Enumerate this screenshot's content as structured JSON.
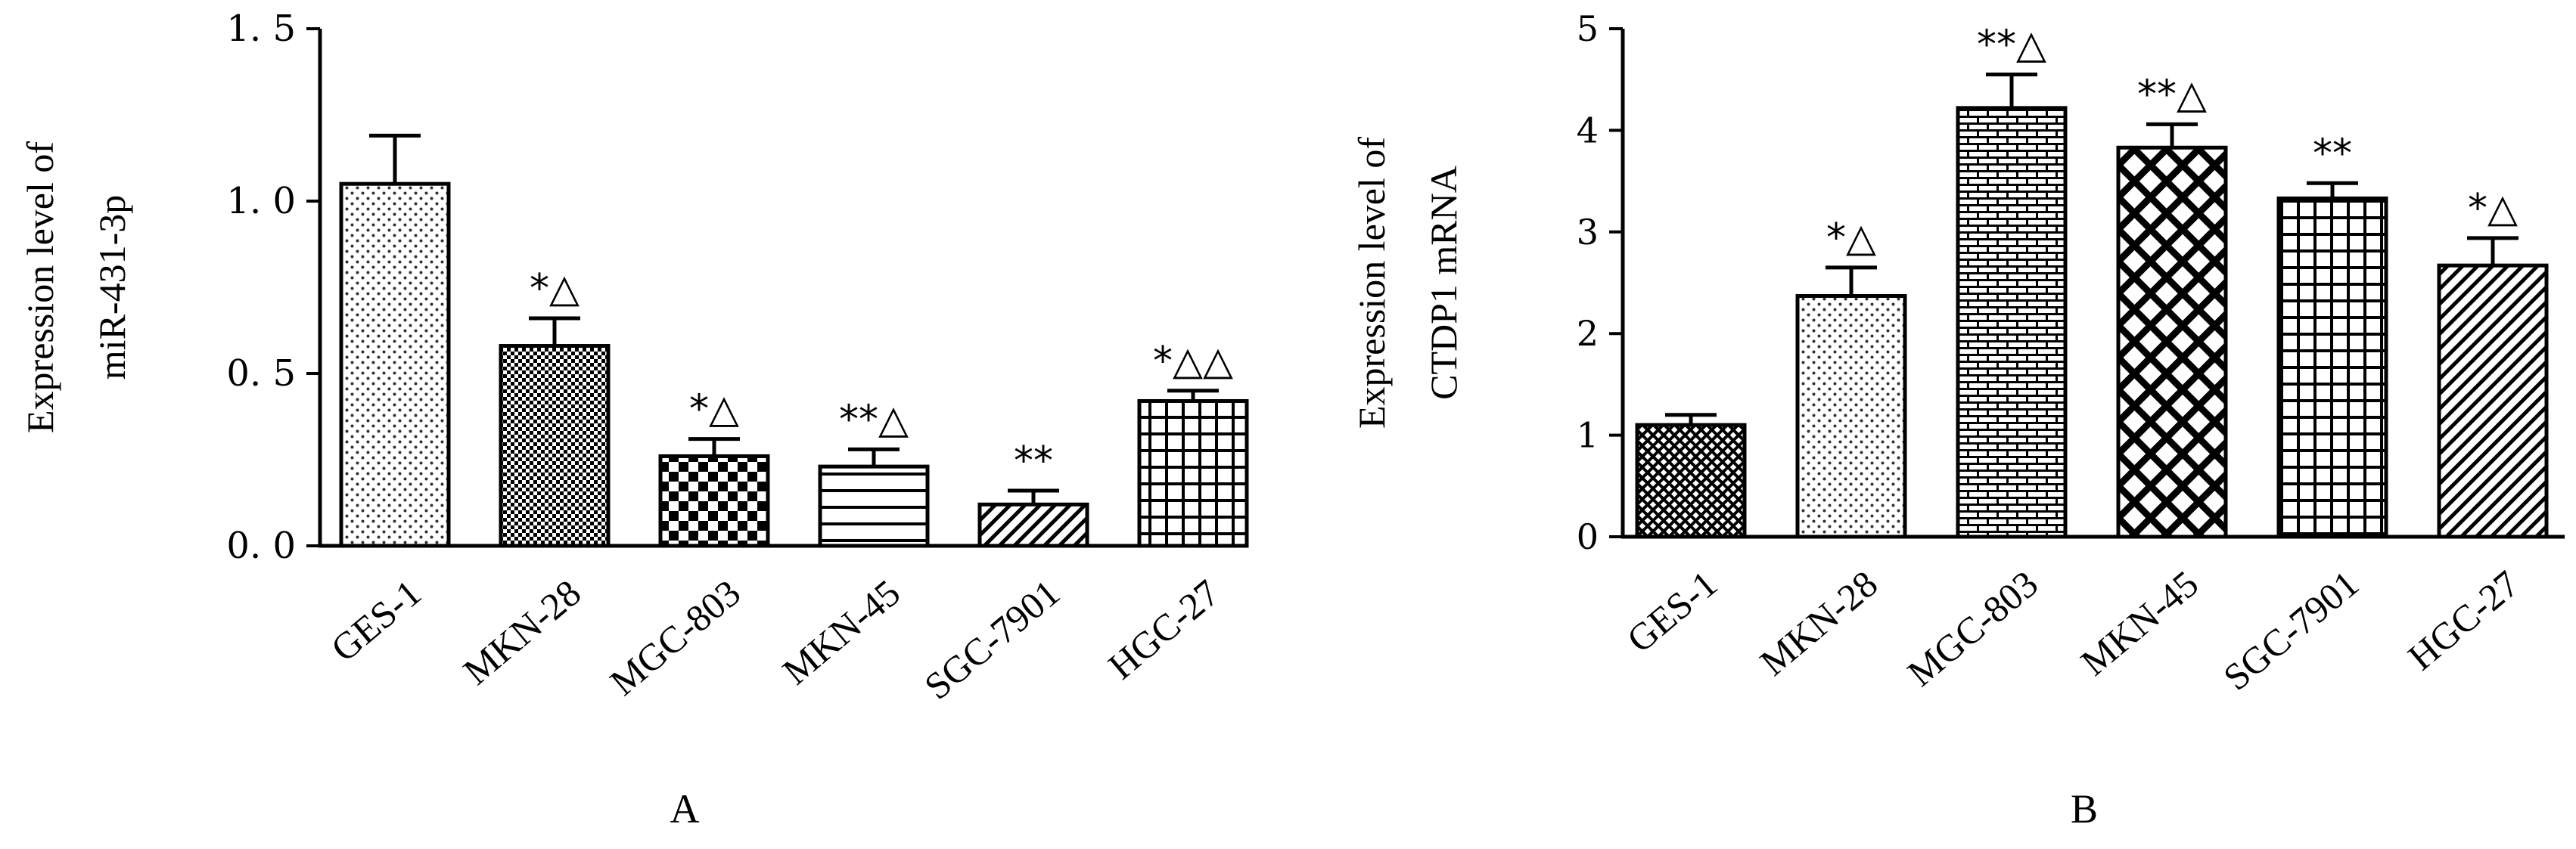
{
  "chart_data": [
    {
      "type": "bar",
      "panel_label": "A",
      "ylabel": [
        "Expression level of",
        "miR-431-3p"
      ],
      "ylim": [
        0,
        1.5
      ],
      "yticks": [
        "0. 0",
        "0. 5",
        "1. 0",
        "1. 5"
      ],
      "ytick_values": [
        0,
        0.5,
        1.0,
        1.5
      ],
      "categories": [
        "GES-1",
        "MKN-28",
        "MGC-803",
        "MKN-45",
        "SGC-7901",
        "HGC-27"
      ],
      "values": [
        1.05,
        0.58,
        0.26,
        0.23,
        0.12,
        0.42
      ],
      "errors": [
        0.14,
        0.08,
        0.05,
        0.05,
        0.04,
        0.03
      ],
      "annotations": [
        "",
        "*△",
        "*△",
        "**△",
        "**",
        "*△△"
      ],
      "patterns": [
        "dots",
        "checker-fine",
        "checker",
        "hlines",
        "diag",
        "grid"
      ]
    },
    {
      "type": "bar",
      "panel_label": "B",
      "ylabel": [
        "Expression level of",
        "CTDP1 mRNA"
      ],
      "ylim": [
        0,
        5
      ],
      "yticks": [
        "0",
        "1",
        "2",
        "3",
        "4",
        "5"
      ],
      "ytick_values": [
        0,
        1,
        2,
        3,
        4,
        5
      ],
      "categories": [
        "GES-1",
        "MKN-28",
        "MGC-803",
        "MKN-45",
        "SGC-7901",
        "HGC-27"
      ],
      "values": [
        1.1,
        2.37,
        4.22,
        3.83,
        3.33,
        2.67
      ],
      "errors": [
        0.1,
        0.28,
        0.33,
        0.23,
        0.15,
        0.27
      ],
      "annotations": [
        "",
        "*△",
        "**△",
        "**△",
        "**",
        "*△"
      ],
      "patterns": [
        "crosshatch-fine",
        "dots",
        "brick",
        "diamond",
        "grid",
        "diag"
      ]
    }
  ]
}
